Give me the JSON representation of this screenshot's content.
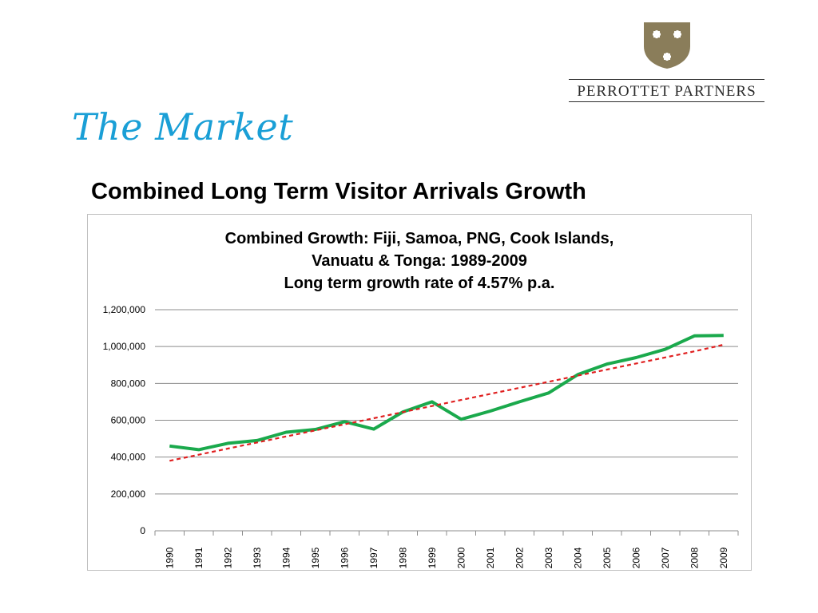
{
  "slide": {
    "title": "The Market",
    "subtitle": "Combined Long Term Visitor Arrivals Growth"
  },
  "logo": {
    "name": "PERROTTET PARTNERS",
    "shield_color": "#8a7d5a"
  },
  "chart_data": {
    "type": "line",
    "title_lines": [
      "Combined Growth: Fiji, Samoa, PNG, Cook Islands,",
      "Vanuatu & Tonga: 1989-2009",
      "Long term growth rate of 4.57% p.a."
    ],
    "categories": [
      "1990",
      "1991",
      "1992",
      "1993",
      "1994",
      "1995",
      "1996",
      "1997",
      "1998",
      "1999",
      "2000",
      "2001",
      "2002",
      "2003",
      "2004",
      "2005",
      "2006",
      "2007",
      "2008",
      "2009"
    ],
    "series": [
      {
        "color": "#1aa94c",
        "style": "solid",
        "values": [
          460000,
          440000,
          475000,
          490000,
          535000,
          550000,
          592000,
          552000,
          645000,
          700000,
          605000,
          650000,
          700000,
          748000,
          848000,
          905000,
          940000,
          985000,
          1058000,
          1060000
        ]
      },
      {
        "color": "#e02020",
        "style": "dashed",
        "values": [
          380000,
          413000,
          446000,
          479000,
          512000,
          545000,
          578000,
          611000,
          644000,
          677000,
          710000,
          743000,
          776000,
          809000,
          842000,
          875000,
          908000,
          941000,
          974000,
          1010000
        ]
      }
    ],
    "y_ticks": [
      "0",
      "200,000",
      "400,000",
      "600,000",
      "800,000",
      "1,000,000",
      "1,200,000"
    ],
    "ylim": [
      0,
      1200000
    ],
    "grid": true
  }
}
